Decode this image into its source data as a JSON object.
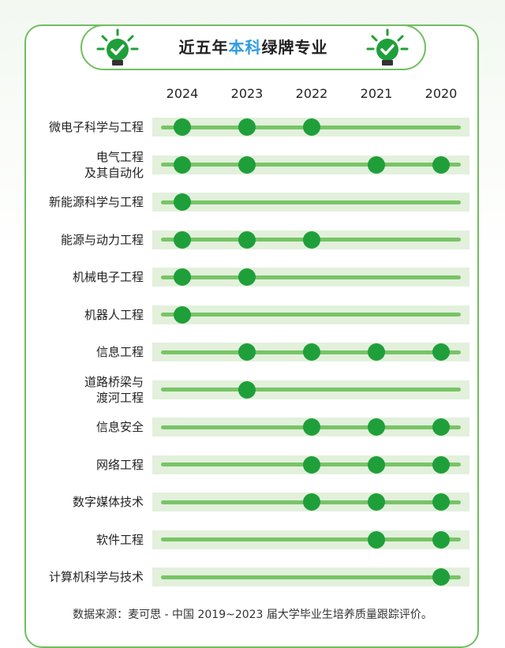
{
  "header": {
    "title_before": "近五年",
    "title_highlight": "本科",
    "title_after": "绿牌专业",
    "icon_left": "lightbulb-check-icon",
    "icon_right": "lightbulb-check-icon"
  },
  "footer": {
    "source": "数据来源：麦可思 - 中国 2019~2023 届大学毕业生培养质量跟踪评价。"
  },
  "colors": {
    "accent_green": "#1f9f3a",
    "line_green": "#78c466",
    "row_bg": "#e2f0dc",
    "highlight_blue": "#2f9be0"
  },
  "chart_data": {
    "type": "table",
    "columns": [
      "2024",
      "2023",
      "2022",
      "2021",
      "2020"
    ],
    "rows": [
      {
        "label": "微电子科学与工程",
        "green": [
          true,
          true,
          true,
          false,
          false
        ]
      },
      {
        "label": "电气工程\n及其自动化",
        "green": [
          true,
          true,
          false,
          true,
          true
        ]
      },
      {
        "label": "新能源科学与工程",
        "green": [
          true,
          false,
          false,
          false,
          false
        ]
      },
      {
        "label": "能源与动力工程",
        "green": [
          true,
          true,
          true,
          false,
          false
        ]
      },
      {
        "label": "机械电子工程",
        "green": [
          true,
          true,
          false,
          false,
          false
        ]
      },
      {
        "label": "机器人工程",
        "green": [
          true,
          false,
          false,
          false,
          false
        ]
      },
      {
        "label": "信息工程",
        "green": [
          false,
          true,
          true,
          true,
          true
        ]
      },
      {
        "label": "道路桥梁与\n渡河工程",
        "green": [
          false,
          true,
          false,
          false,
          false
        ]
      },
      {
        "label": "信息安全",
        "green": [
          false,
          false,
          true,
          true,
          true
        ]
      },
      {
        "label": "网络工程",
        "green": [
          false,
          false,
          true,
          true,
          true
        ]
      },
      {
        "label": "数字媒体技术",
        "green": [
          false,
          false,
          true,
          true,
          true
        ]
      },
      {
        "label": "软件工程",
        "green": [
          false,
          false,
          false,
          true,
          true
        ]
      },
      {
        "label": "计算机科学与技术",
        "green": [
          false,
          false,
          false,
          false,
          true
        ]
      }
    ]
  }
}
